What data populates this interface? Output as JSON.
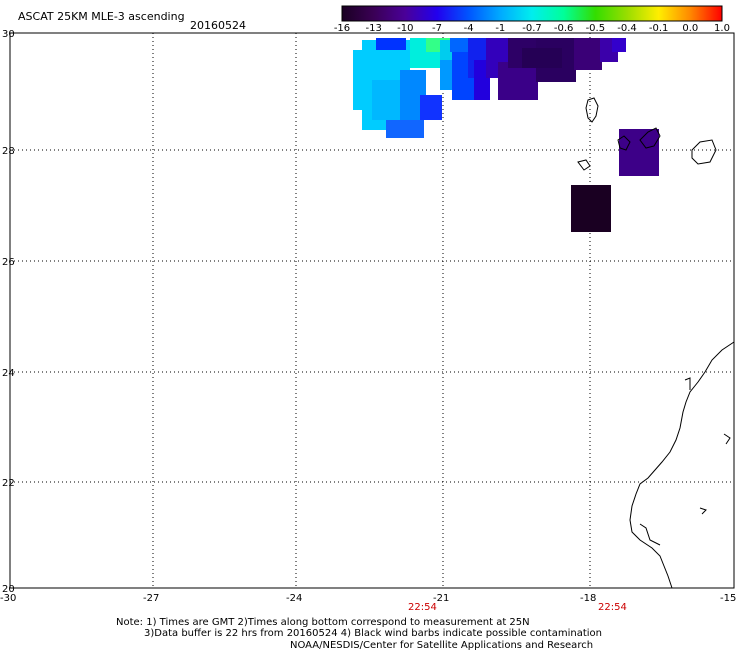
{
  "header": {
    "title": "ASCAT 25KM MLE-3 ascending",
    "date": "20160524"
  },
  "colorbar": {
    "labels": [
      "-16",
      "-13",
      "-10",
      "-7",
      "-4",
      "-1",
      "-0.7",
      "-0.6",
      "-0.5",
      "-0.4",
      "-0.1",
      "0.0",
      "1.0"
    ],
    "colors": [
      "#1a0022",
      "#3a0055",
      "#4a0099",
      "#2200ee",
      "#0055ff",
      "#00aaff",
      "#00eeee",
      "#00ff99",
      "#33dd00",
      "#99dd00",
      "#ffee00",
      "#ff8800",
      "#ff0000"
    ]
  },
  "axes": {
    "x_ticks": [
      "-30",
      "-27",
      "-24",
      "-21",
      "-18",
      "-15"
    ],
    "y_ticks": [
      "30",
      "28",
      "26",
      "24",
      "22",
      "20"
    ],
    "time_labels": [
      "22:54",
      "22:54"
    ]
  },
  "notes": [
    "Note: 1) Times are GMT 2)Times along bottom correspond to measurement at 25N",
    "3)Data buffer is 22 hrs from 20160524 4) Black wind barbs indicate possible contamination",
    "NOAA/NESDIS/Center for Satellite Applications and Research"
  ]
}
